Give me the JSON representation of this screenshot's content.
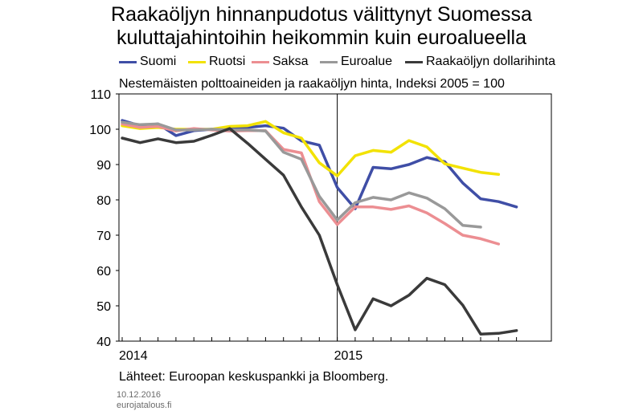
{
  "header": {
    "title_line1": "Raakaöljyn hinnanpudotus välittynyt Suomessa",
    "title_line2": "kuluttajahintoihin heikommin kuin euroalueella"
  },
  "subtitle": "Nestemäisten polttoaineiden ja raakaöljyn hinta, Indeksi 2005 = 100",
  "source": "Lähteet: Euroopan keskuspankki ja Bloomberg.",
  "footer": {
    "date": "10.12.2016",
    "site": "eurojatalous.fi"
  },
  "chart_data": {
    "type": "line",
    "title": "Raakaöljyn hinnanpudotus välittynyt Suomessa kuluttajahintoihin heikommin kuin euroalueella",
    "subtitle": "Nestemäisten polttoaineiden ja raakaöljyn hinta, Indeksi 2005 = 100",
    "ylim": [
      40,
      110
    ],
    "yticks": [
      40,
      50,
      60,
      70,
      80,
      90,
      100,
      110
    ],
    "xticks": [
      "2014",
      "2015"
    ],
    "x": [
      "2014-01",
      "2014-02",
      "2014-03",
      "2014-04",
      "2014-05",
      "2014-06",
      "2014-07",
      "2014-08",
      "2014-09",
      "2014-10",
      "2014-11",
      "2014-12",
      "2015-01",
      "2015-02",
      "2015-03",
      "2015-04",
      "2015-05",
      "2015-06",
      "2015-07",
      "2015-08",
      "2015-09",
      "2015-10",
      "2015-11"
    ],
    "reference_line": "2015-01",
    "grid": false,
    "legend_position": "top",
    "series": [
      {
        "name": "Suomi",
        "color": "#3f4ea6",
        "values": [
          102.5,
          101.0,
          101.5,
          98.2,
          99.6,
          100.0,
          100.0,
          100.5,
          101.0,
          100.3,
          96.7,
          95.5,
          83.5,
          77.5,
          89.2,
          88.8,
          90.0,
          92.0,
          90.8,
          84.8,
          80.3,
          79.5,
          78.0
        ]
      },
      {
        "name": "Ruotsi",
        "color": "#f2e203",
        "values": [
          101.0,
          100.2,
          100.5,
          100.0,
          100.0,
          100.0,
          100.8,
          101.0,
          102.2,
          99.0,
          97.5,
          90.5,
          86.8,
          92.5,
          94.0,
          93.5,
          96.8,
          95.0,
          90.2,
          89.0,
          87.8,
          87.2,
          null
        ]
      },
      {
        "name": "Saksa",
        "color": "#ec8e92",
        "values": [
          101.5,
          100.5,
          100.8,
          99.5,
          100.2,
          99.8,
          99.5,
          99.6,
          99.6,
          94.3,
          93.3,
          79.5,
          73.0,
          78.0,
          78.0,
          77.3,
          78.3,
          76.3,
          73.3,
          70.0,
          69.0,
          67.5,
          null
        ]
      },
      {
        "name": "Euroalue",
        "color": "#999999",
        "values": [
          102.0,
          101.3,
          101.5,
          99.8,
          99.8,
          100.0,
          99.8,
          99.8,
          99.5,
          93.5,
          91.5,
          81.0,
          74.3,
          79.2,
          80.7,
          80.0,
          82.0,
          80.5,
          77.5,
          72.8,
          72.3,
          null,
          null
        ]
      },
      {
        "name": "Raakaöljyn dollarihinta",
        "color": "#3a3a3a",
        "values": [
          97.5,
          96.2,
          97.3,
          96.2,
          96.6,
          98.3,
          100.2,
          96.0,
          91.5,
          87.0,
          78.0,
          70.0,
          56.0,
          43.2,
          52.0,
          50.0,
          53.0,
          57.8,
          56.0,
          50.2,
          42.0,
          42.2,
          43.0
        ]
      }
    ]
  }
}
